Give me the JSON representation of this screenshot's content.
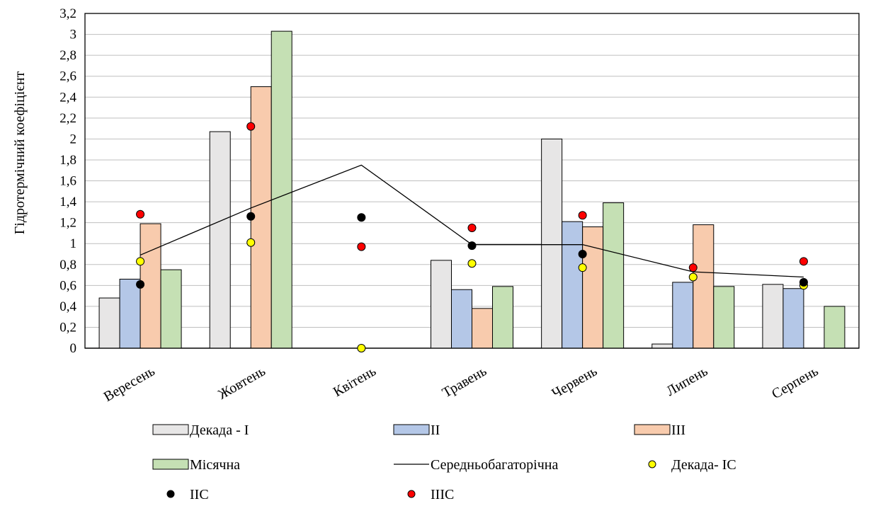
{
  "chart_data": {
    "type": "bar",
    "ylabel": "Гідротермічний коефіцієнт",
    "xlabel": "",
    "ylim": [
      0,
      3.2
    ],
    "ytick_step": 0.2,
    "yticks": [
      "0",
      "0,2",
      "0,4",
      "0,6",
      "0,8",
      "1",
      "1,2",
      "1,4",
      "1,6",
      "1,8",
      "2",
      "2,2",
      "2,4",
      "2,6",
      "2,8",
      "3",
      "3,2"
    ],
    "grid": true,
    "legend_position": "bottom",
    "categories": [
      "Вересень",
      "Жовтень",
      "Квітень",
      "Травень",
      "Червень",
      "Липень",
      "Серпень"
    ],
    "bar_series": [
      {
        "name": "Декада - І",
        "color": "#e7e6e6",
        "values": [
          0.48,
          2.07,
          0,
          0.84,
          2.0,
          0.04,
          0.61
        ]
      },
      {
        "name": "ІІ",
        "color": "#b4c7e7",
        "values": [
          0.66,
          0,
          0,
          0.56,
          1.21,
          0.63,
          0.57
        ]
      },
      {
        "name": "ІІІ",
        "color": "#f8cbad",
        "values": [
          1.19,
          2.5,
          0,
          0.38,
          1.16,
          1.18,
          0
        ]
      },
      {
        "name": "Місячна",
        "color": "#c5e0b4",
        "values": [
          0.75,
          3.03,
          0,
          0.59,
          1.39,
          0.59,
          0.4
        ]
      }
    ],
    "line_series": [
      {
        "name": "Середньобагаторічна",
        "color": "#000000",
        "values": [
          0.89,
          1.34,
          1.75,
          0.99,
          0.99,
          0.73,
          0.68
        ]
      }
    ],
    "point_series": [
      {
        "name": "Декада- ІС",
        "fill": "#ffff00",
        "values": [
          0.83,
          1.01,
          0.0,
          0.81,
          0.77,
          0.68,
          0.6
        ]
      },
      {
        "name": "ІІС",
        "fill": "#000000",
        "values": [
          0.61,
          1.26,
          1.25,
          0.98,
          0.9,
          null,
          0.63
        ]
      },
      {
        "name": "ІІІС",
        "fill": "#ff0000",
        "values": [
          1.28,
          2.12,
          0.97,
          1.15,
          1.27,
          0.77,
          0.83
        ]
      }
    ]
  }
}
